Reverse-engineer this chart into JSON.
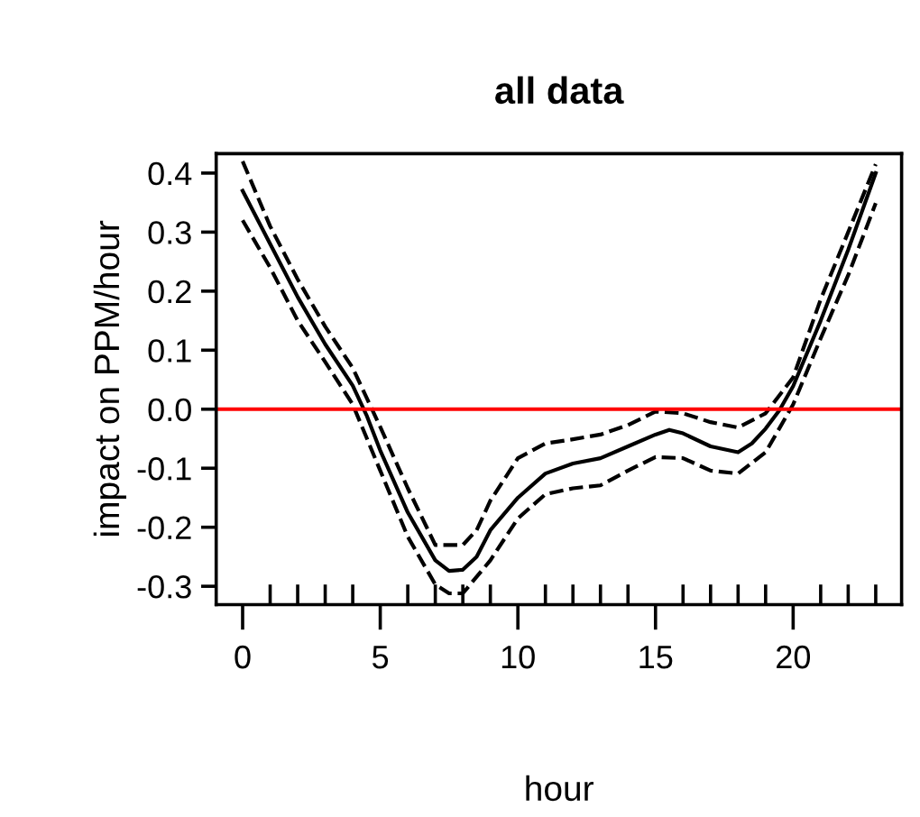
{
  "chart_data": {
    "type": "line",
    "title": "all data",
    "xlabel": "hour",
    "ylabel": "impact on PPM/hour",
    "series": [
      {
        "color": "#000000",
        "line_style": "solid",
        "x": [
          0,
          1,
          2,
          3,
          4,
          4.5,
          5,
          6,
          7,
          7.5,
          8,
          8.5,
          9,
          10,
          11,
          12,
          13,
          14,
          15,
          15.5,
          16,
          17,
          18,
          18.5,
          19,
          19.5,
          20,
          21,
          22,
          23
        ],
        "values": [
          0.37,
          0.28,
          0.19,
          0.11,
          0.04,
          -0.01,
          -0.07,
          -0.175,
          -0.256,
          -0.274,
          -0.272,
          -0.25,
          -0.205,
          -0.15,
          -0.109,
          -0.092,
          -0.083,
          -0.063,
          -0.043,
          -0.035,
          -0.041,
          -0.063,
          -0.073,
          -0.058,
          -0.033,
          -0.002,
          0.039,
          0.15,
          0.27,
          0.4
        ]
      },
      {
        "color": "#000000",
        "line_style": "dashed",
        "x": [
          0,
          1,
          2,
          3,
          4,
          5,
          6,
          7,
          8,
          8.5,
          9,
          10,
          11,
          12,
          13,
          14,
          15,
          16,
          17,
          18,
          19,
          20,
          21,
          22,
          23
        ],
        "values": [
          0.42,
          0.31,
          0.22,
          0.14,
          0.07,
          -0.03,
          -0.134,
          -0.23,
          -0.23,
          -0.205,
          -0.155,
          -0.083,
          -0.058,
          -0.051,
          -0.043,
          -0.027,
          -0.004,
          -0.007,
          -0.022,
          -0.031,
          -0.007,
          0.054,
          0.186,
          0.3,
          0.415
        ]
      },
      {
        "color": "#000000",
        "line_style": "dashed",
        "x": [
          0,
          1,
          2,
          3,
          4,
          5,
          6,
          7,
          7.5,
          8,
          9,
          10,
          11,
          12,
          13,
          14,
          15,
          16,
          17,
          18,
          19,
          20,
          21,
          22,
          23
        ],
        "values": [
          0.32,
          0.24,
          0.15,
          0.08,
          0.008,
          -0.104,
          -0.216,
          -0.297,
          -0.312,
          -0.312,
          -0.256,
          -0.185,
          -0.144,
          -0.134,
          -0.129,
          -0.104,
          -0.081,
          -0.083,
          -0.104,
          -0.109,
          -0.073,
          0.008,
          0.12,
          0.227,
          0.349
        ]
      }
    ],
    "ref_lines": [
      {
        "axis": "y",
        "value": 0,
        "color": "#ff0000",
        "line_style": "solid"
      }
    ],
    "xlim": [
      -0.96,
      23.94
    ],
    "ylim": [
      -0.331,
      0.433
    ],
    "xticks": [
      0,
      {
        "value": 1,
        "label": null
      },
      {
        "value": 2,
        "label": null
      },
      {
        "value": 3,
        "label": null
      },
      {
        "value": 4,
        "label": null
      },
      5,
      {
        "value": 6,
        "label": null
      },
      {
        "value": 7,
        "label": null
      },
      {
        "value": 8,
        "label": null
      },
      {
        "value": 9,
        "label": null
      },
      10,
      {
        "value": 11,
        "label": null
      },
      {
        "value": 12,
        "label": null
      },
      {
        "value": 13,
        "label": null
      },
      {
        "value": 14,
        "label": null
      },
      15,
      {
        "value": 16,
        "label": null
      },
      {
        "value": 17,
        "label": null
      },
      {
        "value": 18,
        "label": null
      },
      {
        "value": 19,
        "label": null
      },
      20,
      {
        "value": 21,
        "label": null
      },
      {
        "value": 22,
        "label": null
      },
      {
        "value": 23,
        "label": null
      }
    ],
    "yticks": [
      0.4,
      0.3,
      0.2,
      0.1,
      {
        "value": 0,
        "label": "0.0"
      },
      -0.1,
      -0.2,
      -0.3
    ],
    "grid": false,
    "legend": false,
    "marker": "none"
  }
}
